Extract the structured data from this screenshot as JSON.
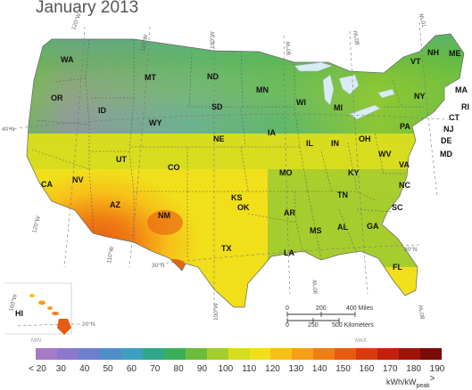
{
  "title": "January 2013",
  "legend": {
    "min_label": "MIN",
    "max_label": "MAX",
    "ticks": [
      "< 20",
      "30",
      "40",
      "50",
      "60",
      "70",
      "80",
      "90",
      "100",
      "110",
      "120",
      "130",
      "140",
      "150",
      "160",
      "170",
      "180",
      "190 >"
    ],
    "unit": "kWh/kW",
    "unit_sub": "peak",
    "colors": [
      "#a57bc7",
      "#8c79cc",
      "#6f7fd0",
      "#4f8ec9",
      "#3f9fc0",
      "#2fa88a",
      "#3aaf5a",
      "#6cbd3e",
      "#a6cd2e",
      "#d6dd1e",
      "#f1df1a",
      "#f7c019",
      "#f69f17",
      "#f07e12",
      "#e85b10",
      "#d93a0e",
      "#c2200d",
      "#a0130b",
      "#7a0b08"
    ]
  },
  "scale_bar": {
    "miles": [
      "0",
      "200",
      "400 Miles"
    ],
    "km": [
      "0",
      "250",
      "500 Kilometers"
    ]
  },
  "graticule": {
    "lon": [
      "120°W",
      "110°W",
      "100°W",
      "90°W",
      "80°W",
      "70°W",
      "160°W"
    ],
    "lat": [
      "40°N",
      "30°N",
      "20°N"
    ]
  },
  "states": [
    "WA",
    "OR",
    "ID",
    "MT",
    "ND",
    "MN",
    "WI",
    "MI",
    "NY",
    "VT",
    "NH",
    "ME",
    "MA",
    "RI",
    "CT",
    "NJ",
    "DE",
    "MD",
    "PA",
    "OH",
    "IN",
    "IL",
    "IA",
    "SD",
    "WY",
    "NE",
    "KS",
    "MO",
    "KY",
    "WV",
    "VA",
    "NC",
    "TN",
    "SC",
    "GA",
    "AL",
    "MS",
    "AR",
    "LA",
    "OK",
    "TX",
    "NM",
    "CO",
    "UT",
    "AZ",
    "NV",
    "CA",
    "FL",
    "HI"
  ]
}
